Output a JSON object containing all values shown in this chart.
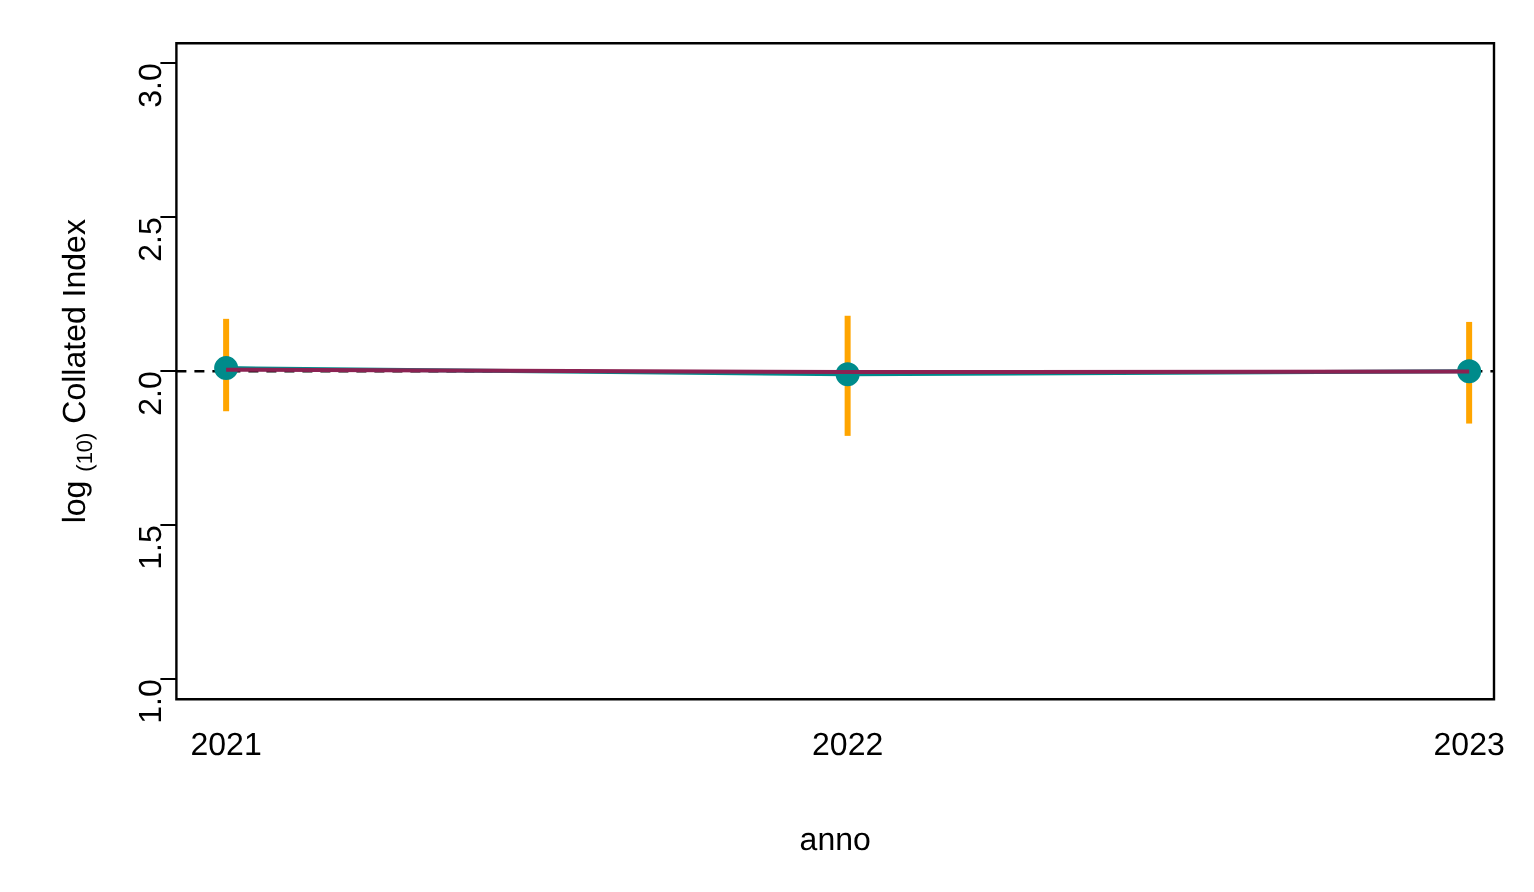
{
  "chart_data": {
    "type": "line",
    "xlabel": "anno",
    "ylabel": "log $_{(10)}$ Collated Index",
    "x": [
      2021,
      2022,
      2023
    ],
    "series": [
      {
        "color": "#8b2252",
        "marker": "none",
        "values": [
          2.005,
          1.997,
          1.999
        ]
      },
      {
        "color": "#008b8b",
        "marker": "circle",
        "values": [
          2.01,
          1.99,
          2.0
        ],
        "errors": [
          [
            1.87,
            2.17
          ],
          [
            1.79,
            2.18
          ],
          [
            1.83,
            2.16
          ]
        ]
      }
    ],
    "xlim": [
      2020.92,
      2023.04
    ],
    "xticks": [
      2021,
      2022,
      2023
    ],
    "ylim": [
      0.935,
      3.065
    ],
    "yticks": [
      {
        "value": 1,
        "label": "1.0"
      },
      1.5,
      {
        "value": 2,
        "label": "2.0"
      },
      2.5,
      {
        "value": 3,
        "label": "3.0"
      }
    ],
    "ref_lines": [
      {
        "axis": "y",
        "value": 2.0,
        "color": "#000000",
        "line_style": "dashed"
      }
    ]
  }
}
